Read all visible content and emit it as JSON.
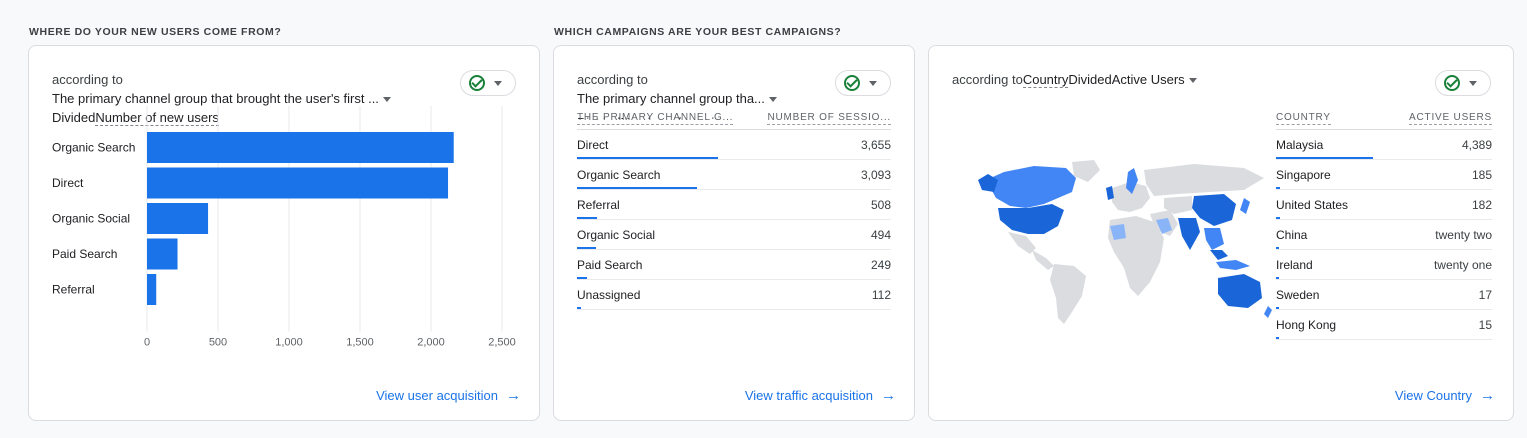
{
  "sections": {
    "left_title": "WHERE DO YOUR NEW USERS COME FROM?",
    "right_title": "WHICH CAMPAIGNS ARE YOUR BEST CAMPAIGNS?"
  },
  "card1": {
    "prefix": "according to",
    "dimension": "The primary channel group that brought the user's first ...",
    "divided": "Divided",
    "metric": "Number of new users",
    "link": "View user acquisition"
  },
  "card2": {
    "prefix": "according to",
    "dimension": "The primary channel group tha...",
    "overflow_text": "DividedNumber of sessi",
    "col1": "THE PRIMARY CHANNEL G...",
    "col2": "NUMBER OF SESSIO...",
    "rows": [
      {
        "label": "Direct",
        "value": "3,655",
        "pct": 1.0
      },
      {
        "label": "Organic Search",
        "value": "3,093",
        "pct": 0.846
      },
      {
        "label": "Referral",
        "value": "508",
        "pct": 0.139
      },
      {
        "label": "Organic Social",
        "value": "494",
        "pct": 0.135
      },
      {
        "label": "Paid Search",
        "value": "249",
        "pct": 0.068
      },
      {
        "label": "Unassigned",
        "value": "112",
        "pct": 0.031
      }
    ],
    "link": "View traffic acquisition"
  },
  "card3": {
    "prefix": "according to",
    "dimension": "Country",
    "divided": "Divided",
    "metric": "Active Users",
    "col1": "COUNTRY",
    "col2": "ACTIVE USERS",
    "rows": [
      {
        "label": "Malaysia",
        "value": "4,389",
        "pct": 1.0
      },
      {
        "label": "Singapore",
        "value": "185",
        "pct": 0.042
      },
      {
        "label": "United States",
        "value": "182",
        "pct": 0.041
      },
      {
        "label": "China",
        "value": "twenty two",
        "pct": 0.005
      },
      {
        "label": "Ireland",
        "value": "twenty one",
        "pct": 0.005
      },
      {
        "label": "Sweden",
        "value": "17",
        "pct": 0.004
      },
      {
        "label": "Hong Kong",
        "value": "15",
        "pct": 0.003
      }
    ],
    "link": "View Country"
  },
  "colors": {
    "accent": "#1a73e8",
    "success": "#188038",
    "map_land": "#dadce0",
    "map_high": "#1a66d9",
    "map_mid": "#4285f4",
    "map_low": "#8ab4f8"
  },
  "icons": {
    "status": "check-circle-icon",
    "link_arrow": "arrow-right-icon",
    "dropdown": "triangle-down-icon"
  },
  "chart_data": {
    "type": "bar",
    "orientation": "horizontal",
    "categories": [
      "Organic Search",
      "Direct",
      "Organic Social",
      "Paid Search",
      "Referral"
    ],
    "values": [
      2160,
      2120,
      430,
      215,
      65
    ],
    "xlim": [
      0,
      2500
    ],
    "xticks": [
      "0",
      "500",
      "1,000",
      "1,500",
      "2,000",
      "2,500"
    ],
    "grid": true
  }
}
